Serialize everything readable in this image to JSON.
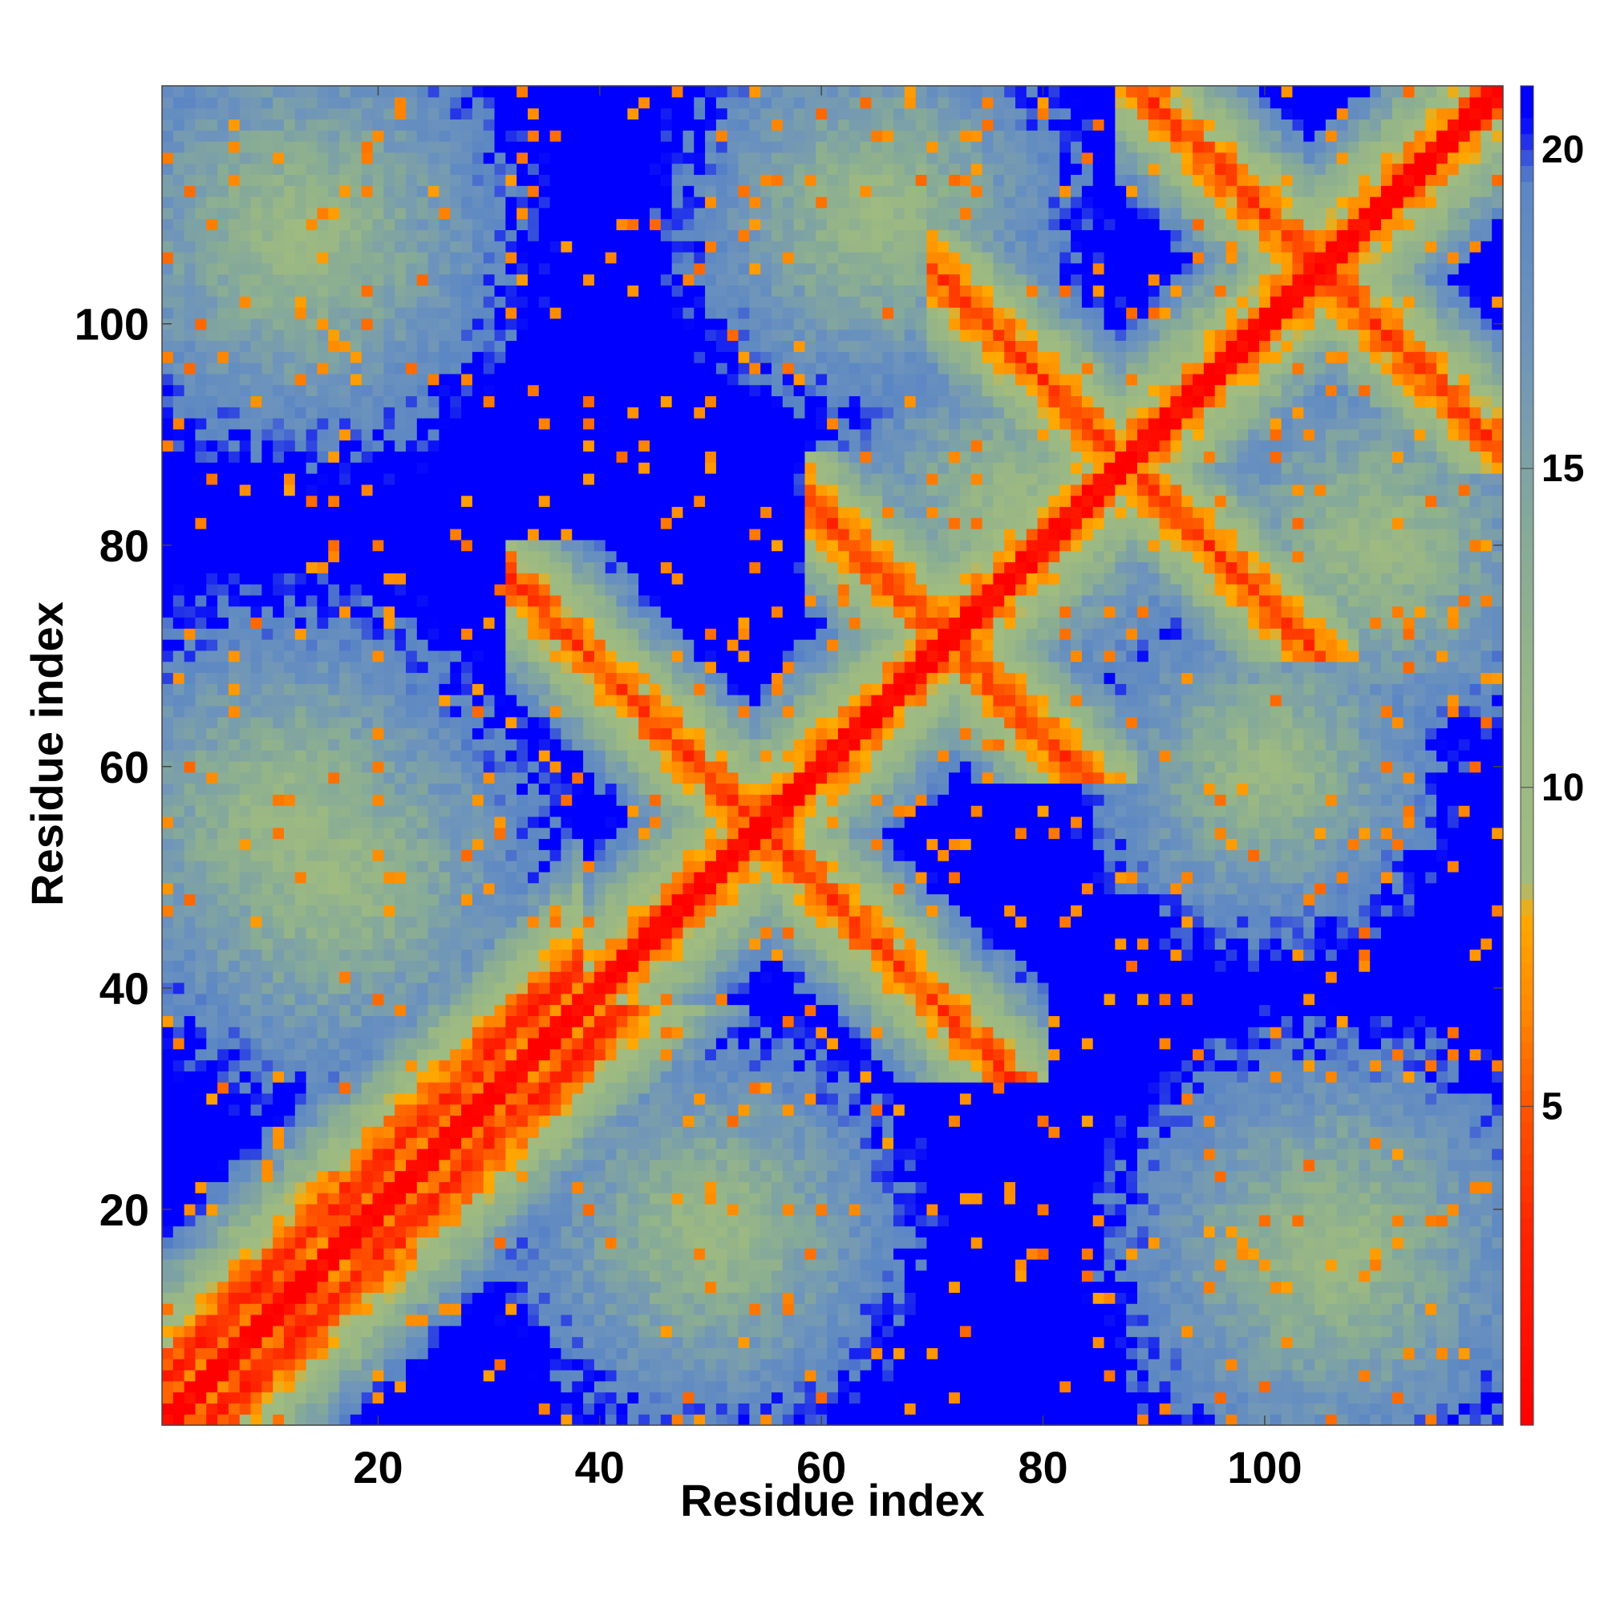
{
  "chart_data": {
    "type": "heatmap",
    "title": "",
    "xlabel": "Residue index",
    "ylabel": "Residue index",
    "n_residues": 121,
    "xlim": [
      0.5,
      121.5
    ],
    "ylim": [
      0.5,
      121.5
    ],
    "x_ticks": [
      20,
      40,
      60,
      80,
      100
    ],
    "y_ticks": [
      20,
      40,
      60,
      80,
      100
    ],
    "colorbar": {
      "range": [
        0,
        21
      ],
      "ticks": [
        5,
        10,
        15,
        20
      ],
      "stops": [
        {
          "value": 0,
          "color": "#ff0000"
        },
        {
          "value": 3,
          "color": "#ff2200"
        },
        {
          "value": 5,
          "color": "#ff5500"
        },
        {
          "value": 6.5,
          "color": "#ff8800"
        },
        {
          "value": 8,
          "color": "#ffaa00"
        },
        {
          "value": 8.5,
          "color": "#a0bc80"
        },
        {
          "value": 11,
          "color": "#9ab884"
        },
        {
          "value": 14,
          "color": "#86aa98"
        },
        {
          "value": 17,
          "color": "#6e94bc"
        },
        {
          "value": 19.5,
          "color": "#5a86c4"
        },
        {
          "value": 20.5,
          "color": "#0000ff"
        }
      ]
    },
    "contact_features": [
      {
        "kind": "diagonal",
        "description": "main diagonal i=j"
      },
      {
        "kind": "parallel-strand",
        "i_range": [
          1,
          37
        ],
        "offset": 4
      },
      {
        "kind": "antiparallel-strand",
        "center_sum": 109,
        "i_range": [
          35,
          74
        ]
      },
      {
        "kind": "antiparallel-strand",
        "center_sum": 175,
        "i_range": [
          73,
          102
        ]
      },
      {
        "kind": "antiparallel-strand",
        "center_sum": 210,
        "i_range": [
          90,
          120
        ]
      },
      {
        "kind": "antiparallel-strand",
        "center_sum": 143,
        "i_range": [
          62,
          82
        ]
      }
    ]
  }
}
